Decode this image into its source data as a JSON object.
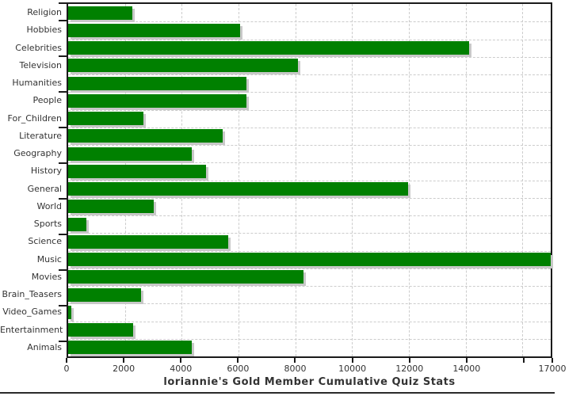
{
  "page": {
    "background": "#ffffff",
    "bottom_rule_color": "#2a2a2a"
  },
  "chart_data": {
    "type": "bar",
    "orientation": "horizontal",
    "title": "loriannie's Gold Member Cumulative Quiz Stats",
    "categories": [
      "Religion",
      "Hobbies",
      "Celebrities",
      "Television",
      "Humanities",
      "People",
      "For_Children",
      "Literature",
      "Geography",
      "History",
      "General",
      "World",
      "Sports",
      "Science",
      "Music",
      "Movies",
      "Brain_Teasers",
      "Video_Games",
      "Entertainment",
      "Animals"
    ],
    "values": [
      2270,
      6060,
      14130,
      8100,
      6280,
      6280,
      2650,
      5440,
      4360,
      4850,
      11970,
      3020,
      640,
      5630,
      17000,
      8300,
      2580,
      100,
      2280,
      4360
    ],
    "xlabel": "",
    "ylabel": "",
    "xlim": [
      0,
      17000
    ],
    "x_ticks": [
      {
        "value": 0,
        "label": "0"
      },
      {
        "value": 2000,
        "label": "2000"
      },
      {
        "value": 4000,
        "label": "4000"
      },
      {
        "value": 6000,
        "label": "6000"
      },
      {
        "value": 8000,
        "label": "8000"
      },
      {
        "value": 10000,
        "label": "10000"
      },
      {
        "value": 12000,
        "label": "12000"
      },
      {
        "value": 14000,
        "label": "14000"
      },
      {
        "value": 16000,
        "label": ""
      },
      {
        "value": 17000,
        "label": "17000"
      }
    ],
    "grid": "dashed",
    "grid_color": "#cccccc",
    "bar_color": "#008000",
    "bar_shadow_color": "#c8c8c8",
    "frame_color": "#1a1a1a",
    "label_color": "#333333",
    "legend_position": "none"
  }
}
